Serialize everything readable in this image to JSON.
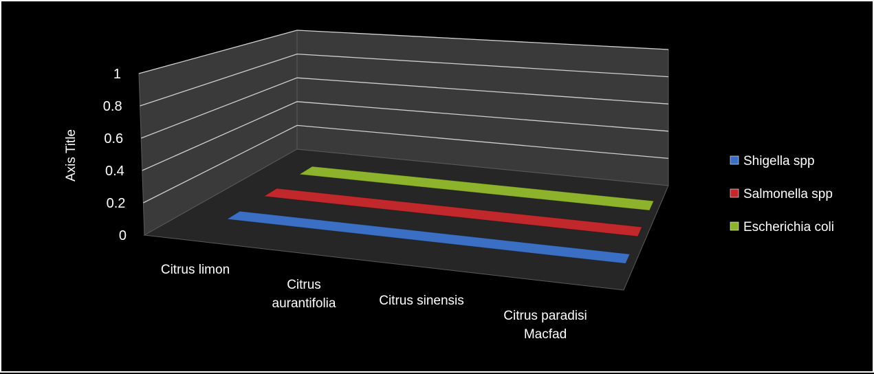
{
  "chart_data": {
    "type": "bar",
    "style": "3d-clustered-depth",
    "title": "",
    "xlabel": "",
    "ylabel": "Axis Title",
    "ylim": [
      0,
      1
    ],
    "yticks": [
      "0",
      "0.2",
      "0.4",
      "0.6",
      "0.8",
      "1"
    ],
    "categories": [
      "Citrus limon",
      "Citrus aurantifolia",
      "Citrus sinensis",
      "Citrus paradisi Macfad"
    ],
    "series": [
      {
        "name": "Shigella spp",
        "color": "#3b6fc4",
        "values": [
          0,
          0,
          0,
          0
        ]
      },
      {
        "name": "Salmonella spp",
        "color": "#c0282b",
        "values": [
          0,
          0,
          0,
          0
        ]
      },
      {
        "name": "Escherichia coli",
        "color": "#8db32c",
        "values": [
          0,
          0,
          0,
          0
        ]
      }
    ],
    "legend_position": "right",
    "grid": true,
    "background": "#000000",
    "wall_color": "#3a3a3a",
    "floor_color": "#262626"
  }
}
